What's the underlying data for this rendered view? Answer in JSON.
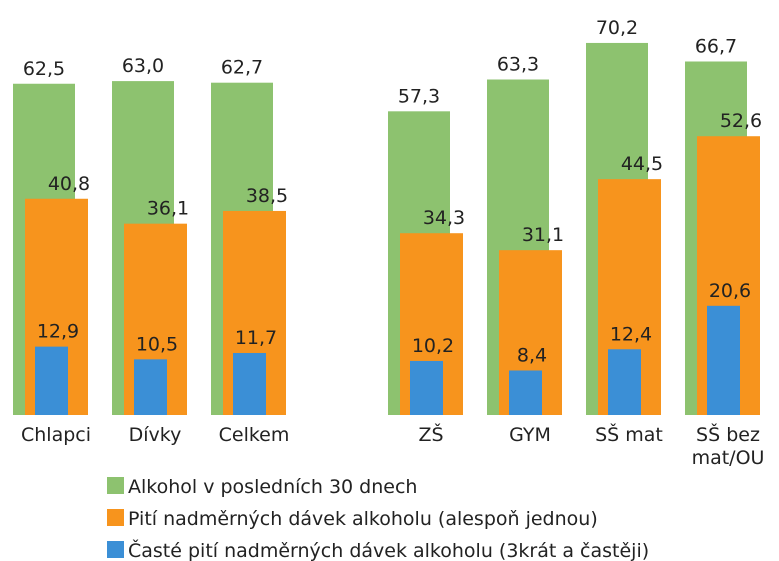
{
  "chart_data": {
    "type": "bar",
    "categories": [
      "Chlapci",
      "Dívky",
      "Celkem",
      "ZŠ",
      "GYM",
      "SŠ mat",
      "SŠ bez mat/OU"
    ],
    "series": [
      {
        "name": "Alkohol v posledních 30 dnech",
        "color": "#8dc26f",
        "values": [
          62.5,
          63.0,
          62.7,
          57.3,
          63.3,
          70.2,
          66.7
        ],
        "value_labels": [
          "62,5",
          "63,0",
          "62,7",
          "57,3",
          "63,3",
          "70,2",
          "66,7"
        ]
      },
      {
        "name": "Pití nadměrných dávek alkoholu (alespoň jednou)",
        "color": "#f7941d",
        "values": [
          40.8,
          36.1,
          38.5,
          34.3,
          31.1,
          44.5,
          52.6
        ],
        "value_labels": [
          "40,8",
          "36,1",
          "38,5",
          "34,3",
          "31,1",
          "44,5",
          "52,6"
        ]
      },
      {
        "name": "Časté pití nadměrných dávek alkoholu (3krát a častěji)",
        "color": "#3b8fd6",
        "values": [
          12.9,
          10.5,
          11.7,
          10.2,
          8.4,
          12.4,
          20.6
        ],
        "value_labels": [
          "12,9",
          "10,5",
          "11,7",
          "10,2",
          "8,4",
          "12,4",
          "20,6"
        ]
      }
    ]
  }
}
